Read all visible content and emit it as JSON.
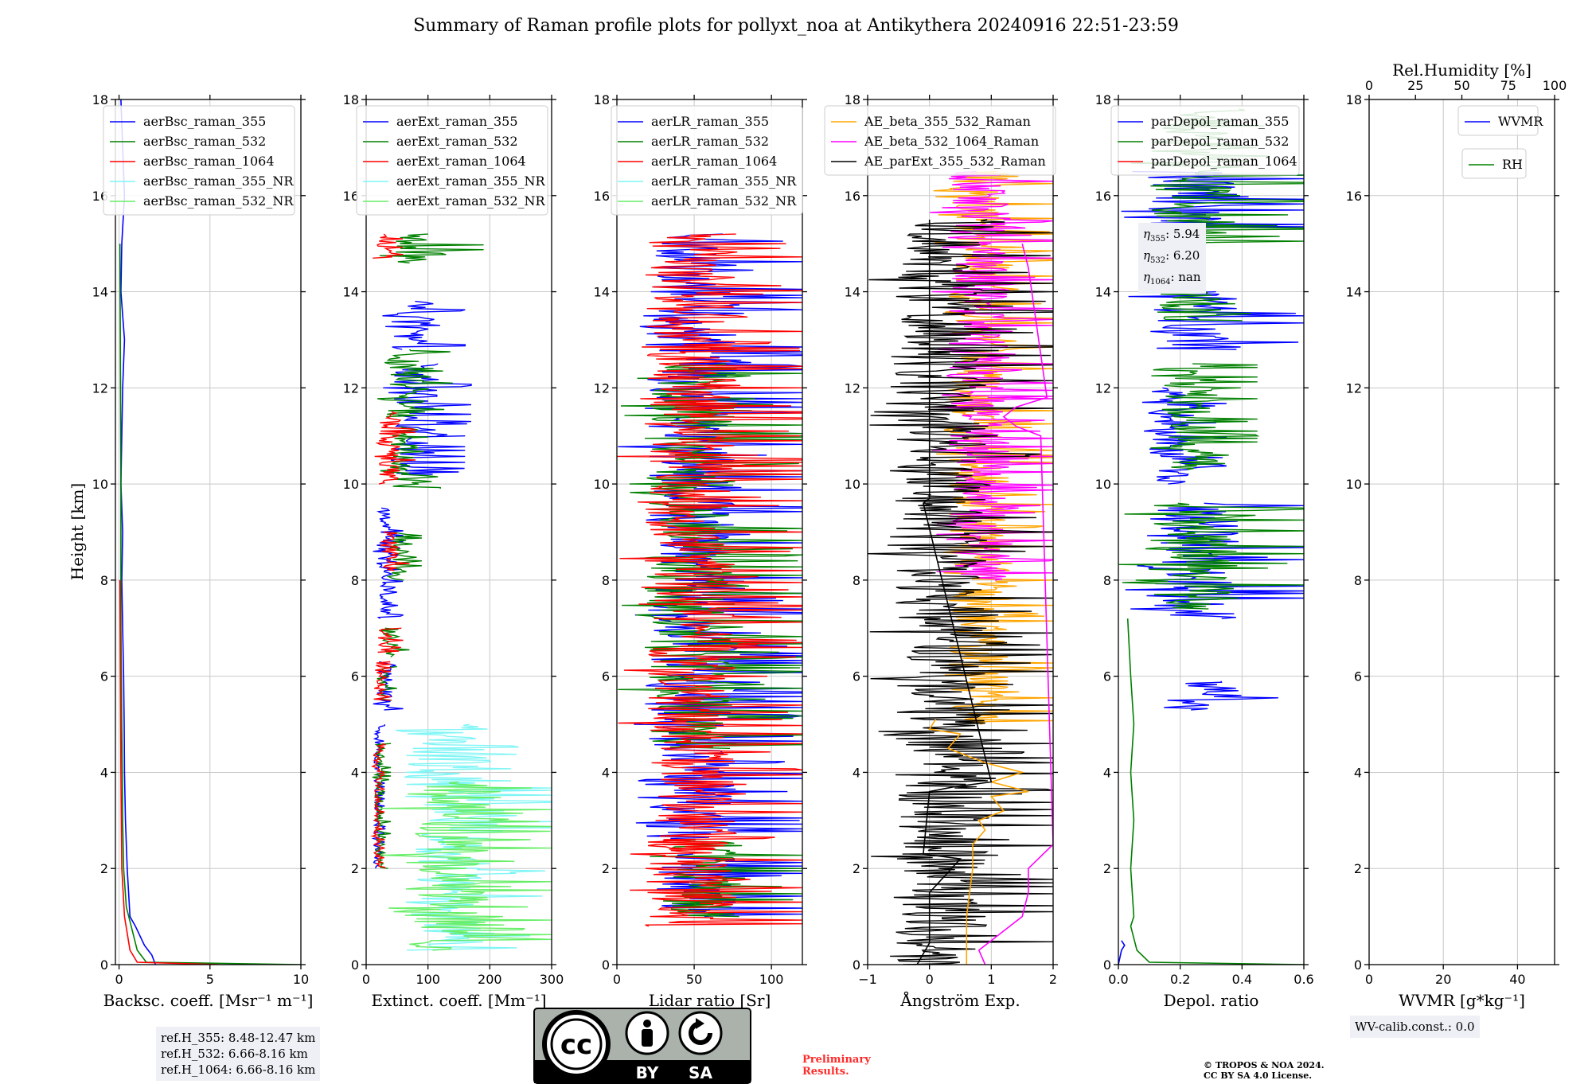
{
  "figure": {
    "title": "Summary of Raman profile plots for pollyxt_noa at Antikythera 20240916 22:51-23:59",
    "ylabel": "Height [km]",
    "license_badge": [
      "cc-icon",
      "by-icon",
      "sa-icon"
    ],
    "license_badge_labels": [
      "BY",
      "SA"
    ],
    "preliminary": [
      "Preliminary",
      "Results."
    ],
    "copyright": [
      "© TROPOS & NOA 2024.",
      "CC BY SA 4.0 License."
    ],
    "ref_heights": [
      "ref.H_355: 8.48-12.47 km",
      "ref.H_532: 6.66-8.16 km",
      "ref.H_1064: 6.66-8.16 km"
    ],
    "eta": [
      {
        "sym": "η",
        "sub": "355",
        "val": ": 5.94"
      },
      {
        "sym": "η",
        "sub": "532",
        "val": ": 6.20"
      },
      {
        "sym": "η",
        "sub": "1064",
        "val": ": nan"
      }
    ],
    "wv_calib": "WV-calib.const.: 0.0"
  },
  "colors": {
    "blue": "#0000ff",
    "green": "#008000",
    "red": "#ff0000",
    "cyan": "#7ff5f5",
    "lightgreen": "#66ee66",
    "orange": "#ffa500",
    "magenta": "#ff00ff",
    "black": "#000000"
  },
  "chart_data": [
    {
      "id": "backscatter",
      "type": "line",
      "xlabel": "Backsc. coeff. [Msr⁻¹ m⁻¹]",
      "xlim": [
        -0.2,
        10
      ],
      "xticks": [
        "0",
        "5",
        "10"
      ],
      "xtick_values": [
        0,
        5,
        10
      ],
      "ylim": [
        0,
        18
      ],
      "yticks": [
        "0",
        "2",
        "4",
        "6",
        "8",
        "10",
        "12",
        "14",
        "16",
        "18"
      ],
      "legend": [
        "aerBsc_raman_355",
        "aerBsc_raman_532",
        "aerBsc_raman_1064",
        "aerBsc_raman_355_NR",
        "aerBsc_raman_532_NR"
      ],
      "legend_colors": [
        "#0000ff",
        "#008000",
        "#ff0000",
        "#7ff5f5",
        "#66ee66"
      ],
      "series": [
        {
          "name": "aerBsc_raman_355",
          "color": "#0000ff",
          "x": [
            2.0,
            1.8,
            1.4,
            0.9,
            0.6,
            0.45,
            0.35,
            0.3,
            0.28,
            0.25,
            0.2,
            0.15,
            0.2,
            0.1,
            0.15,
            0.2,
            0.3,
            0.1,
            0.15,
            0.3,
            0.2,
            0.1
          ],
          "y": [
            0,
            0.2,
            0.4,
            0.8,
            1.0,
            2.0,
            3.0,
            4.0,
            5.0,
            6.0,
            7.0,
            8.0,
            9.0,
            10.0,
            11.0,
            12.0,
            13.0,
            14.0,
            15.0,
            16.0,
            17.0,
            18.0
          ]
        },
        {
          "name": "aerBsc_raman_532",
          "color": "#008000",
          "x": [
            10.0,
            1.5,
            1.0,
            0.6,
            0.4,
            0.25,
            0.2,
            0.15,
            0.1,
            0.1,
            0.05
          ],
          "y": [
            0,
            0.05,
            0.3,
            0.9,
            1.2,
            2.0,
            3.0,
            5.0,
            7.0,
            10.0,
            15.0
          ]
        },
        {
          "name": "aerBsc_raman_1064",
          "color": "#ff0000",
          "x": [
            5.5,
            1.0,
            0.6,
            0.3,
            0.15,
            0.1,
            0.05
          ],
          "y": [
            0,
            0.05,
            0.3,
            1.0,
            2.0,
            4.0,
            8.0
          ]
        }
      ]
    },
    {
      "id": "extinction",
      "type": "line",
      "xlabel": "Extinct. coeff. [Mm⁻¹]",
      "xlim": [
        0,
        300
      ],
      "xticks": [
        "0",
        "100",
        "200",
        "300"
      ],
      "xtick_values": [
        0,
        100,
        200,
        300
      ],
      "ylim": [
        0,
        18
      ],
      "yticks": [
        "0",
        "2",
        "4",
        "6",
        "8",
        "10",
        "12",
        "14",
        "16",
        "18"
      ],
      "legend": [
        "aerExt_raman_355",
        "aerExt_raman_532",
        "aerExt_raman_1064",
        "aerExt_raman_355_NR",
        "aerExt_raman_532_NR"
      ],
      "legend_colors": [
        "#0000ff",
        "#008000",
        "#ff0000",
        "#7ff5f5",
        "#66ee66"
      ],
      "noise": [
        {
          "color": "#0000ff",
          "seed": 11,
          "ranges": [
            [
              2.0,
              5.0,
              10,
              30
            ],
            [
              5.3,
              6.3,
              10,
              60
            ],
            [
              7.2,
              9.5,
              10,
              60
            ],
            [
              10.2,
              11.0,
              20,
              160
            ],
            [
              11.0,
              12.5,
              20,
              170
            ],
            [
              12.8,
              13.8,
              20,
              160
            ]
          ]
        },
        {
          "color": "#008000",
          "seed": 23,
          "ranges": [
            [
              2.0,
              4.6,
              10,
              40
            ],
            [
              5.5,
              6.2,
              10,
              50
            ],
            [
              6.4,
              7.0,
              20,
              70
            ],
            [
              8.0,
              9.0,
              30,
              90
            ],
            [
              9.9,
              11.2,
              20,
              120
            ],
            [
              11.4,
              12.8,
              10,
              140
            ],
            [
              14.6,
              15.2,
              20,
              190
            ]
          ]
        },
        {
          "color": "#ff0000",
          "seed": 37,
          "ranges": [
            [
              2.0,
              4.6,
              10,
              30
            ],
            [
              5.5,
              6.3,
              10,
              40
            ],
            [
              6.5,
              7.0,
              10,
              60
            ],
            [
              8.2,
              9.0,
              20,
              70
            ],
            [
              10.0,
              11.5,
              10,
              80
            ],
            [
              14.7,
              15.2,
              10,
              60
            ]
          ]
        },
        {
          "color": "#7ff5f5",
          "seed": 41,
          "ranges": [
            [
              0.3,
              5.0,
              20,
              300
            ]
          ]
        },
        {
          "color": "#66ee66",
          "seed": 53,
          "ranges": [
            [
              0.3,
              3.8,
              20,
              300
            ]
          ]
        }
      ]
    },
    {
      "id": "lidarratio",
      "type": "line",
      "xlabel": "Lidar ratio [Sr]",
      "xlim": [
        0,
        120
      ],
      "xticks": [
        "0",
        "50",
        "100"
      ],
      "xtick_values": [
        0,
        50,
        100
      ],
      "ylim": [
        0,
        18
      ],
      "yticks": [
        "0",
        "2",
        "4",
        "6",
        "8",
        "10",
        "12",
        "14",
        "16",
        "18"
      ],
      "legend": [
        "aerLR_raman_355",
        "aerLR_raman_532",
        "aerLR_raman_1064",
        "aerLR_raman_355_NR",
        "aerLR_raman_532_NR"
      ],
      "legend_colors": [
        "#0000ff",
        "#008000",
        "#ff0000",
        "#7ff5f5",
        "#66ee66"
      ],
      "noise": [
        {
          "color": "#0000ff",
          "seed": 61,
          "ranges": [
            [
              1.0,
              2.3,
              0,
              120
            ],
            [
              2.6,
              15.2,
              0,
              120
            ]
          ]
        },
        {
          "color": "#008000",
          "seed": 67,
          "ranges": [
            [
              1.0,
              2.6,
              20,
              120
            ],
            [
              4.5,
              12.5,
              0,
              120
            ]
          ]
        },
        {
          "color": "#ff0000",
          "seed": 71,
          "ranges": [
            [
              0.8,
              2.6,
              0,
              120
            ],
            [
              2.4,
              15.2,
              0,
              120
            ]
          ]
        }
      ]
    },
    {
      "id": "angstrom",
      "type": "line",
      "xlabel": "Ångström Exp.",
      "xlim": [
        -1,
        2
      ],
      "xticks": [
        "−1",
        "0",
        "1",
        "2"
      ],
      "xtick_values": [
        -1,
        0,
        1,
        2
      ],
      "ylim": [
        0,
        18
      ],
      "yticks": [
        "0",
        "2",
        "4",
        "6",
        "8",
        "10",
        "12",
        "14",
        "16",
        "18"
      ],
      "legend": [
        "AE_beta_355_532_Raman",
        "AE_beta_532_1064_Raman",
        "AE_parExt_355_532_Raman"
      ],
      "legend_colors": [
        "#ffa500",
        "#ff00ff",
        "#000000"
      ],
      "series": [
        {
          "name": "AE_beta_355_532_Raman",
          "color": "#ffa500",
          "x": [
            0.6,
            0.6,
            0.7,
            0.7,
            0.9,
            0.8,
            1.2,
            1.0,
            1.6,
            1.0,
            1.5,
            0.9,
            0.3,
            0.5,
            0.0,
            0.1
          ],
          "y": [
            0,
            1.0,
            2.0,
            2.5,
            2.8,
            3.0,
            3.2,
            3.5,
            3.6,
            3.8,
            4.0,
            4.2,
            4.5,
            4.8,
            4.9,
            5.1
          ]
        },
        {
          "name": "AE_beta_532_1064_Raman",
          "color": "#ff00ff",
          "x": [
            0.9,
            0.8,
            1.5,
            1.6,
            1.6,
            2.0,
            1.8,
            1.4,
            1.2,
            1.4,
            1.9,
            1.6,
            1.5
          ],
          "y": [
            0,
            0.3,
            1.0,
            1.5,
            2.0,
            2.5,
            11.0,
            11.2,
            11.4,
            11.6,
            11.8,
            14.5,
            15.0
          ]
        },
        {
          "name": "AE_parExt_355_532_Raman",
          "color": "#000000",
          "x": [
            -0.2,
            0.0,
            0.0,
            0.0,
            0.5,
            -0.1,
            0.0,
            0.4,
            1.0,
            -0.1,
            0.0,
            0.0,
            0.0
          ],
          "y": [
            0,
            0.45,
            0.9,
            1.5,
            2.2,
            2.3,
            3.6,
            3.7,
            3.8,
            9.6,
            9.7,
            14.0,
            15.5
          ]
        }
      ],
      "noise": [
        {
          "color": "#ffa500",
          "seed": 83,
          "ranges": [
            [
              5.0,
              16.5,
              0,
              2
            ]
          ]
        },
        {
          "color": "#ff00ff",
          "seed": 89,
          "ranges": [
            [
              8.0,
              16.5,
              0,
              2
            ]
          ]
        },
        {
          "color": "#000000",
          "seed": 97,
          "ranges": [
            [
              0.0,
              15.5,
              -1,
              2
            ]
          ]
        }
      ]
    },
    {
      "id": "depol",
      "type": "line",
      "xlabel": "Depol. ratio",
      "xlim": [
        0,
        0.6
      ],
      "xticks": [
        "0.0",
        "0.2",
        "0.4",
        "0.6"
      ],
      "xtick_values": [
        0,
        0.2,
        0.4,
        0.6
      ],
      "ylim": [
        0,
        18
      ],
      "yticks": [
        "0",
        "2",
        "4",
        "6",
        "8",
        "10",
        "12",
        "14",
        "16",
        "18"
      ],
      "legend": [
        "parDepol_raman_355",
        "parDepol_raman_532",
        "parDepol_raman_1064"
      ],
      "legend_colors": [
        "#0000ff",
        "#008000",
        "#ff0000"
      ],
      "series": [
        {
          "name": "parDepol_raman_532",
          "color": "#008000",
          "x": [
            0.6,
            0.1,
            0.06,
            0.04,
            0.05,
            0.04,
            0.05,
            0.04,
            0.05,
            0.04,
            0.03
          ],
          "y": [
            0,
            0.05,
            0.3,
            0.8,
            1.0,
            2.0,
            3.0,
            4.0,
            5.0,
            6.0,
            7.2
          ]
        },
        {
          "name": "parDepol_raman_355",
          "color": "#0000ff",
          "x": [
            0.0,
            0.01,
            0.02,
            0.01
          ],
          "y": [
            0,
            0.3,
            0.4,
            0.5
          ]
        }
      ],
      "noise": [
        {
          "color": "#0000ff",
          "seed": 101,
          "ranges": [
            [
              5.3,
              5.9,
              0.1,
              0.6
            ],
            [
              7.2,
              9.6,
              0.0,
              0.6
            ],
            [
              10.0,
              12.0,
              0.05,
              0.35
            ],
            [
              12.8,
              14.0,
              0.0,
              0.6
            ],
            [
              15.3,
              16.5,
              0.0,
              0.6
            ]
          ]
        },
        {
          "color": "#008000",
          "seed": 103,
          "ranges": [
            [
              7.4,
              9.6,
              0.0,
              0.6
            ],
            [
              10.3,
              12.5,
              0.1,
              0.45
            ],
            [
              13.4,
              14.0,
              0.0,
              0.6
            ],
            [
              15.0,
              17.8,
              0.0,
              0.6
            ]
          ]
        }
      ]
    },
    {
      "id": "wvmr",
      "type": "line",
      "xlabel": "WVMR [g*kg⁻¹]",
      "xlim": [
        0,
        50
      ],
      "xticks": [
        "0",
        "20",
        "40"
      ],
      "xtick_values": [
        0,
        20,
        40
      ],
      "x2label": "Rel.Humidity [%]",
      "x2lim": [
        0,
        100
      ],
      "x2ticks": [
        "0",
        "25",
        "50",
        "75",
        "100"
      ],
      "x2tick_values": [
        0,
        25,
        50,
        75,
        100
      ],
      "ylim": [
        0,
        18
      ],
      "yticks": [
        "0",
        "2",
        "4",
        "6",
        "8",
        "10",
        "12",
        "14",
        "16",
        "18"
      ],
      "legend": [
        "WVMR"
      ],
      "legend_colors": [
        "#0000ff"
      ],
      "legend2": [
        "RH"
      ],
      "legend2_colors": [
        "#008000"
      ]
    }
  ]
}
